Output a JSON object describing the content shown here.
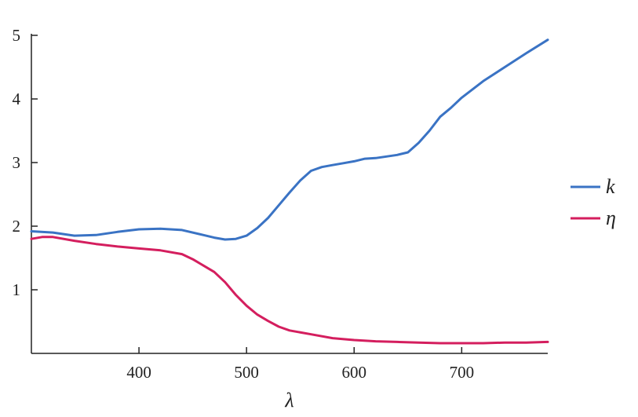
{
  "chart_data": {
    "type": "line",
    "title": "",
    "xlabel": "λ",
    "ylabel": "",
    "xlim": [
      300,
      780
    ],
    "ylim": [
      0,
      5
    ],
    "xticks": [
      400,
      500,
      600,
      700
    ],
    "yticks": [
      1,
      2,
      3,
      4,
      5
    ],
    "grid": false,
    "legend_position": "right",
    "series": [
      {
        "name": "k",
        "color": "#3a73c4",
        "x": [
          300,
          320,
          340,
          360,
          380,
          400,
          420,
          440,
          460,
          470,
          480,
          490,
          500,
          510,
          520,
          530,
          540,
          550,
          560,
          570,
          580,
          590,
          600,
          610,
          620,
          640,
          650,
          660,
          670,
          680,
          690,
          700,
          720,
          740,
          760,
          780
        ],
        "y": [
          1.92,
          1.9,
          1.85,
          1.86,
          1.91,
          1.95,
          1.96,
          1.94,
          1.86,
          1.82,
          1.79,
          1.8,
          1.85,
          1.97,
          2.13,
          2.33,
          2.53,
          2.72,
          2.87,
          2.93,
          2.96,
          2.99,
          3.02,
          3.06,
          3.07,
          3.12,
          3.16,
          3.31,
          3.5,
          3.72,
          3.86,
          4.02,
          4.28,
          4.5,
          4.72,
          4.93
        ]
      },
      {
        "name": "η",
        "color": "#d41e5e",
        "x": [
          300,
          310,
          320,
          340,
          360,
          380,
          400,
          420,
          440,
          450,
          460,
          470,
          480,
          490,
          500,
          510,
          520,
          530,
          540,
          560,
          580,
          600,
          620,
          640,
          660,
          680,
          700,
          720,
          740,
          760,
          780
        ],
        "y": [
          1.8,
          1.83,
          1.83,
          1.77,
          1.72,
          1.68,
          1.65,
          1.62,
          1.56,
          1.48,
          1.38,
          1.28,
          1.12,
          0.92,
          0.75,
          0.61,
          0.51,
          0.42,
          0.36,
          0.3,
          0.24,
          0.21,
          0.19,
          0.18,
          0.17,
          0.16,
          0.16,
          0.16,
          0.17,
          0.17,
          0.18
        ]
      }
    ]
  }
}
